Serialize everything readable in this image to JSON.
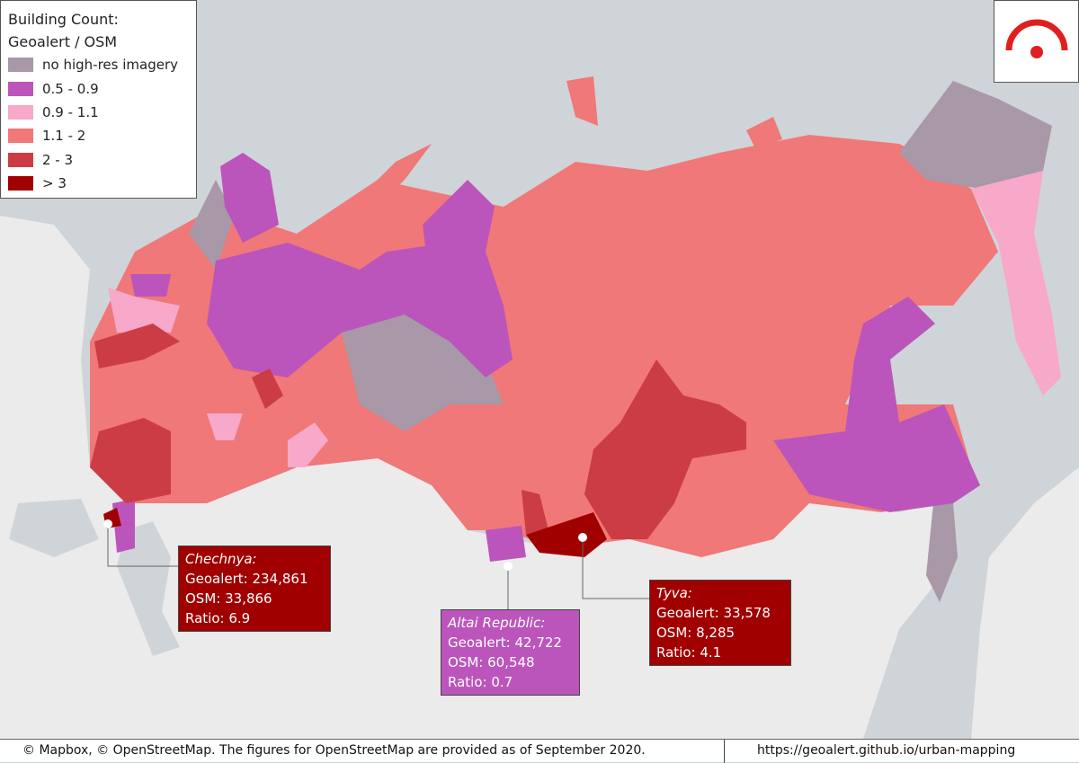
{
  "legend": {
    "title": [
      "Building Count:",
      "Geoalert / OSM"
    ],
    "items": [
      {
        "label": "no high-res imagery",
        "color": "#a898a8"
      },
      {
        "label": "0.5 - 0.9",
        "color": "#bb55bb"
      },
      {
        "label": "0.9 - 1.1",
        "color": "#f8a8c8"
      },
      {
        "label": "1.1 - 2",
        "color": "#f07878"
      },
      {
        "label": "2 - 3",
        "color": "#cc3c44"
      },
      {
        "label": "> 3",
        "color": "#a00000"
      }
    ]
  },
  "callouts": [
    {
      "name": "Chechnya:",
      "lines": [
        "Geoalert: 234,861",
        "OSM: 33,866",
        "Ratio: 6.9"
      ],
      "color": "#a00000"
    },
    {
      "name": "Altai Republic:",
      "lines": [
        "Geoalert: 42,722",
        "OSM: 60,548",
        "Ratio: 0.7"
      ],
      "color": "#bb55bb"
    },
    {
      "name": "Tyva:",
      "lines": [
        "Geoalert: 33,578",
        "OSM: 8,285",
        "Ratio: 4.1"
      ],
      "color": "#a00000"
    }
  ],
  "footer": {
    "left": "© Mapbox, © OpenStreetMap. The figures for OpenStreetMap are provided as of September 2020.",
    "right": "https://geoalert.github.io/urban-mapping"
  }
}
